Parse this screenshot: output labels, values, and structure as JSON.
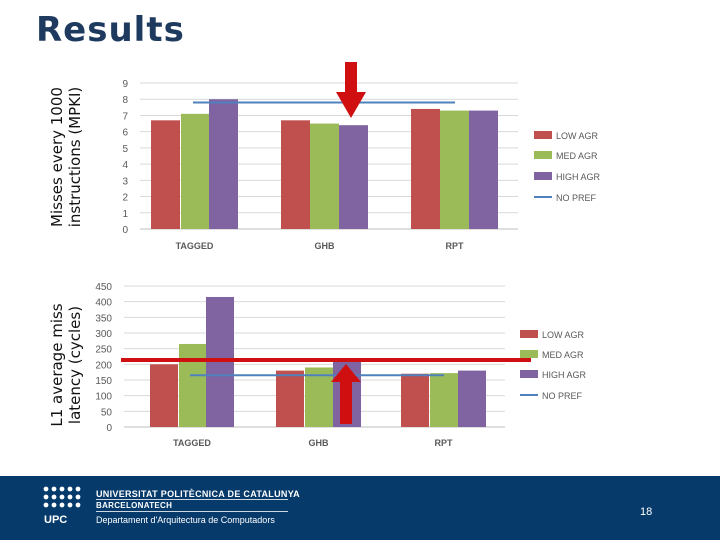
{
  "slide": {
    "title": "Results",
    "ylabel_top": [
      "Misses every 1000",
      "instructions (MPKI)"
    ],
    "ylabel_bottom": [
      "L1 average miss",
      "latency (cycles)"
    ]
  },
  "colors": {
    "low": "#c0504d",
    "med": "#9bbb59",
    "high": "#8064a2",
    "nopref": "#4f81bd",
    "highlight": "#d01010"
  },
  "chart_data": [
    {
      "type": "bar",
      "categories": [
        "TAGGED",
        "GHB",
        "RPT"
      ],
      "series": [
        {
          "name": "LOW AGR",
          "values": [
            6.7,
            6.7,
            7.4
          ]
        },
        {
          "name": "MED AGR",
          "values": [
            7.1,
            6.5,
            7.3
          ]
        },
        {
          "name": "HIGH AGR",
          "values": [
            8.0,
            6.4,
            7.3
          ]
        }
      ],
      "lines": [
        {
          "name": "NO PREF",
          "value": 7.8
        }
      ],
      "ylim": [
        0,
        9
      ],
      "yticks": [
        "0",
        "1",
        "2",
        "3",
        "4",
        "5",
        "6",
        "7",
        "8",
        "9"
      ],
      "grid": true,
      "legend": "right"
    },
    {
      "type": "bar",
      "categories": [
        "TAGGED",
        "GHB",
        "RPT"
      ],
      "series": [
        {
          "name": "LOW AGR",
          "values": [
            200,
            180,
            170
          ]
        },
        {
          "name": "MED AGR",
          "values": [
            265,
            190,
            172
          ]
        },
        {
          "name": "HIGH AGR",
          "values": [
            415,
            215,
            180
          ]
        }
      ],
      "lines": [
        {
          "name": "NO PREF",
          "value": 165
        }
      ],
      "ylim": [
        0,
        450
      ],
      "yticks": [
        "0",
        "50",
        "100",
        "150",
        "200",
        "250",
        "300",
        "350",
        "400",
        "450"
      ],
      "grid": true,
      "legend": "right"
    }
  ],
  "footer": {
    "logo": "UPC",
    "university": "UNIVERSITAT POLITÈCNICA DE CATALUNYA",
    "city": "BARCELONATECH",
    "department": "Departament d'Arquitectura de Computadors",
    "page": "18"
  }
}
